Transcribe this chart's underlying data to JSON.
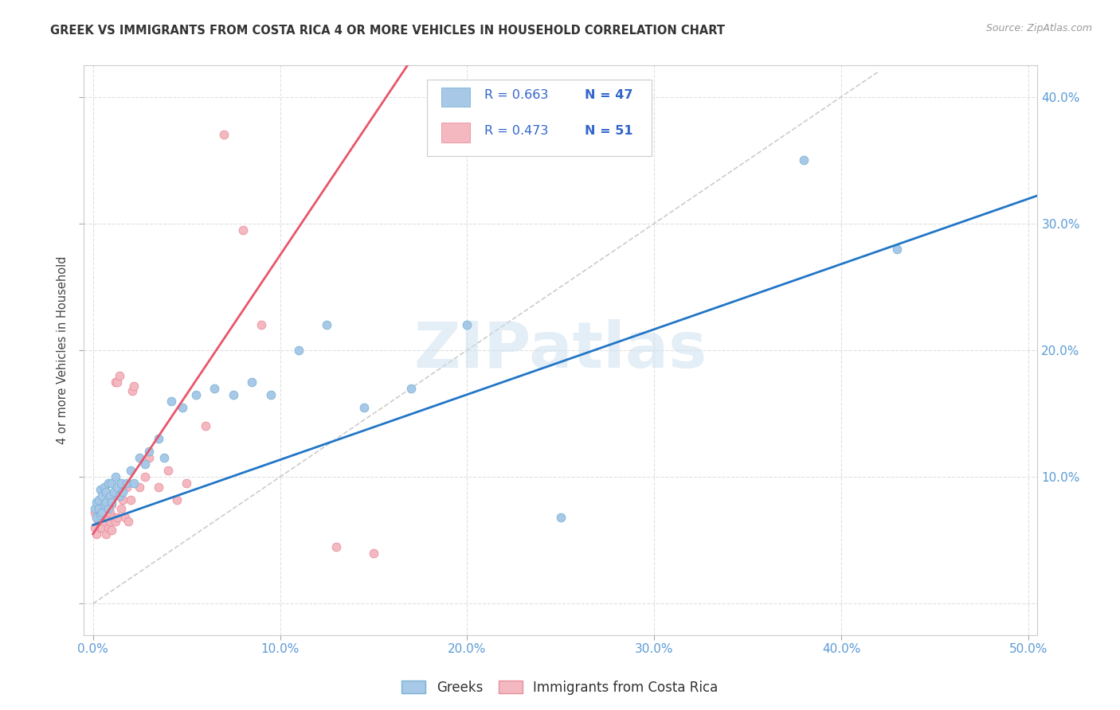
{
  "title": "GREEK VS IMMIGRANTS FROM COSTA RICA 4 OR MORE VEHICLES IN HOUSEHOLD CORRELATION CHART",
  "source": "Source: ZipAtlas.com",
  "ylabel": "4 or more Vehicles in Household",
  "xlim": [
    -0.005,
    0.505
  ],
  "ylim": [
    -0.025,
    0.425
  ],
  "xticks": [
    0.0,
    0.1,
    0.2,
    0.3,
    0.4,
    0.5
  ],
  "yticks": [
    0.0,
    0.1,
    0.2,
    0.3,
    0.4
  ],
  "tick_color": "#5b9bd5",
  "watermark": "ZIPatlas",
  "legend_label_blue": "Greeks",
  "legend_label_pink": "Immigrants from Costa Rica",
  "legend_r_blue": "R = 0.663",
  "legend_n_blue": "N = 47",
  "legend_r_pink": "R = 0.473",
  "legend_n_pink": "N = 51",
  "blue_scatter_face": "#a8c8e8",
  "blue_scatter_edge": "#7ab3d4",
  "pink_scatter_face": "#f4b8c1",
  "pink_scatter_edge": "#e8909f",
  "blue_line_color": "#2176c7",
  "pink_line_color": "#e8566b",
  "ref_line_color": "#cccccc",
  "grid_color": "#e0e0e0",
  "blue_x": [
    0.001,
    0.002,
    0.002,
    0.003,
    0.003,
    0.004,
    0.004,
    0.005,
    0.005,
    0.006,
    0.006,
    0.007,
    0.007,
    0.008,
    0.008,
    0.009,
    0.01,
    0.01,
    0.011,
    0.012,
    0.013,
    0.014,
    0.015,
    0.016,
    0.018,
    0.02,
    0.022,
    0.025,
    0.028,
    0.03,
    0.035,
    0.038,
    0.042,
    0.048,
    0.055,
    0.065,
    0.075,
    0.085,
    0.095,
    0.11,
    0.125,
    0.145,
    0.17,
    0.2,
    0.25,
    0.38,
    0.43
  ],
  "blue_y": [
    0.075,
    0.08,
    0.068,
    0.075,
    0.082,
    0.07,
    0.09,
    0.072,
    0.085,
    0.078,
    0.092,
    0.08,
    0.088,
    0.075,
    0.095,
    0.085,
    0.08,
    0.095,
    0.088,
    0.1,
    0.092,
    0.085,
    0.095,
    0.088,
    0.095,
    0.105,
    0.095,
    0.115,
    0.11,
    0.12,
    0.13,
    0.115,
    0.16,
    0.155,
    0.165,
    0.17,
    0.165,
    0.175,
    0.165,
    0.2,
    0.22,
    0.155,
    0.17,
    0.22,
    0.068,
    0.35,
    0.28
  ],
  "pink_x": [
    0.001,
    0.001,
    0.002,
    0.002,
    0.003,
    0.003,
    0.004,
    0.004,
    0.005,
    0.005,
    0.005,
    0.006,
    0.006,
    0.007,
    0.007,
    0.007,
    0.008,
    0.008,
    0.008,
    0.009,
    0.009,
    0.01,
    0.01,
    0.011,
    0.011,
    0.012,
    0.012,
    0.013,
    0.013,
    0.014,
    0.015,
    0.016,
    0.017,
    0.018,
    0.019,
    0.02,
    0.021,
    0.022,
    0.025,
    0.028,
    0.03,
    0.035,
    0.04,
    0.045,
    0.05,
    0.06,
    0.07,
    0.08,
    0.09,
    0.13,
    0.15
  ],
  "pink_y": [
    0.072,
    0.06,
    0.068,
    0.055,
    0.065,
    0.075,
    0.06,
    0.082,
    0.07,
    0.06,
    0.078,
    0.072,
    0.065,
    0.055,
    0.07,
    0.082,
    0.06,
    0.072,
    0.082,
    0.065,
    0.072,
    0.078,
    0.058,
    0.068,
    0.085,
    0.065,
    0.175,
    0.175,
    0.068,
    0.18,
    0.075,
    0.082,
    0.068,
    0.092,
    0.065,
    0.082,
    0.168,
    0.172,
    0.092,
    0.1,
    0.115,
    0.092,
    0.105,
    0.082,
    0.095,
    0.14,
    0.37,
    0.295,
    0.22,
    0.045,
    0.04
  ]
}
